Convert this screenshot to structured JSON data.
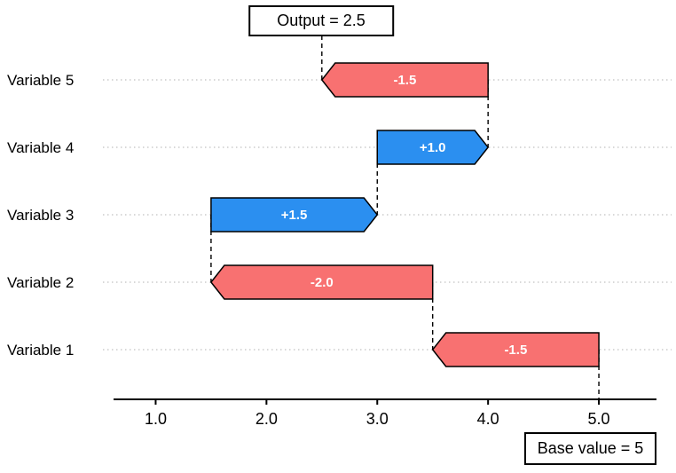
{
  "chart_data": {
    "type": "waterfall",
    "title": "Output = 2.5",
    "base_label": "Base value = 5",
    "base_value": 5,
    "output_value": 2.5,
    "categories_top_to_bottom": [
      "Variable 5",
      "Variable 4",
      "Variable 3",
      "Variable 2",
      "Variable 1"
    ],
    "x_ticks": [
      "1.0",
      "2.0",
      "3.0",
      "4.0",
      "5.0"
    ],
    "x_tick_values": [
      1,
      2,
      3,
      4,
      5
    ],
    "xlim": [
      0.62,
      5.52
    ],
    "steps": [
      {
        "label": "Variable 1",
        "value": -1.5,
        "display": "-1.5",
        "start": 5.0,
        "end": 3.5,
        "direction": "negative"
      },
      {
        "label": "Variable 2",
        "value": -2.0,
        "display": "-2.0",
        "start": 3.5,
        "end": 1.5,
        "direction": "negative"
      },
      {
        "label": "Variable 3",
        "value": 1.5,
        "display": "+1.5",
        "start": 1.5,
        "end": 3.0,
        "direction": "positive"
      },
      {
        "label": "Variable 4",
        "value": 1.0,
        "display": "+1.0",
        "start": 3.0,
        "end": 4.0,
        "direction": "positive"
      },
      {
        "label": "Variable 5",
        "value": -1.5,
        "display": "-1.5",
        "start": 4.0,
        "end": 2.5,
        "direction": "negative"
      }
    ],
    "colors": {
      "positive": "#2b8ff0",
      "negative": "#f87171",
      "outline": "#000000",
      "gridline": "#cccccc",
      "axis": "#000000",
      "label_text": "#ffffff",
      "connector": "#000000"
    },
    "legend": "none",
    "grid": "horizontal-dotted"
  }
}
